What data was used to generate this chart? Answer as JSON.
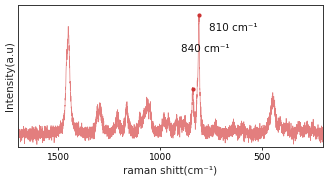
{
  "xlabel": "raman shitt(cm⁻¹)",
  "ylabel": "Intensity(a.u)",
  "line_color": "#e07070",
  "background_color": "#ffffff",
  "annotation_840": "840 cm⁻¹",
  "annotation_810": "810 cm⁻¹",
  "dot_color": "#cc3333",
  "xlabel_fontsize": 7.5,
  "ylabel_fontsize": 7.5,
  "annot_fontsize": 7.5
}
